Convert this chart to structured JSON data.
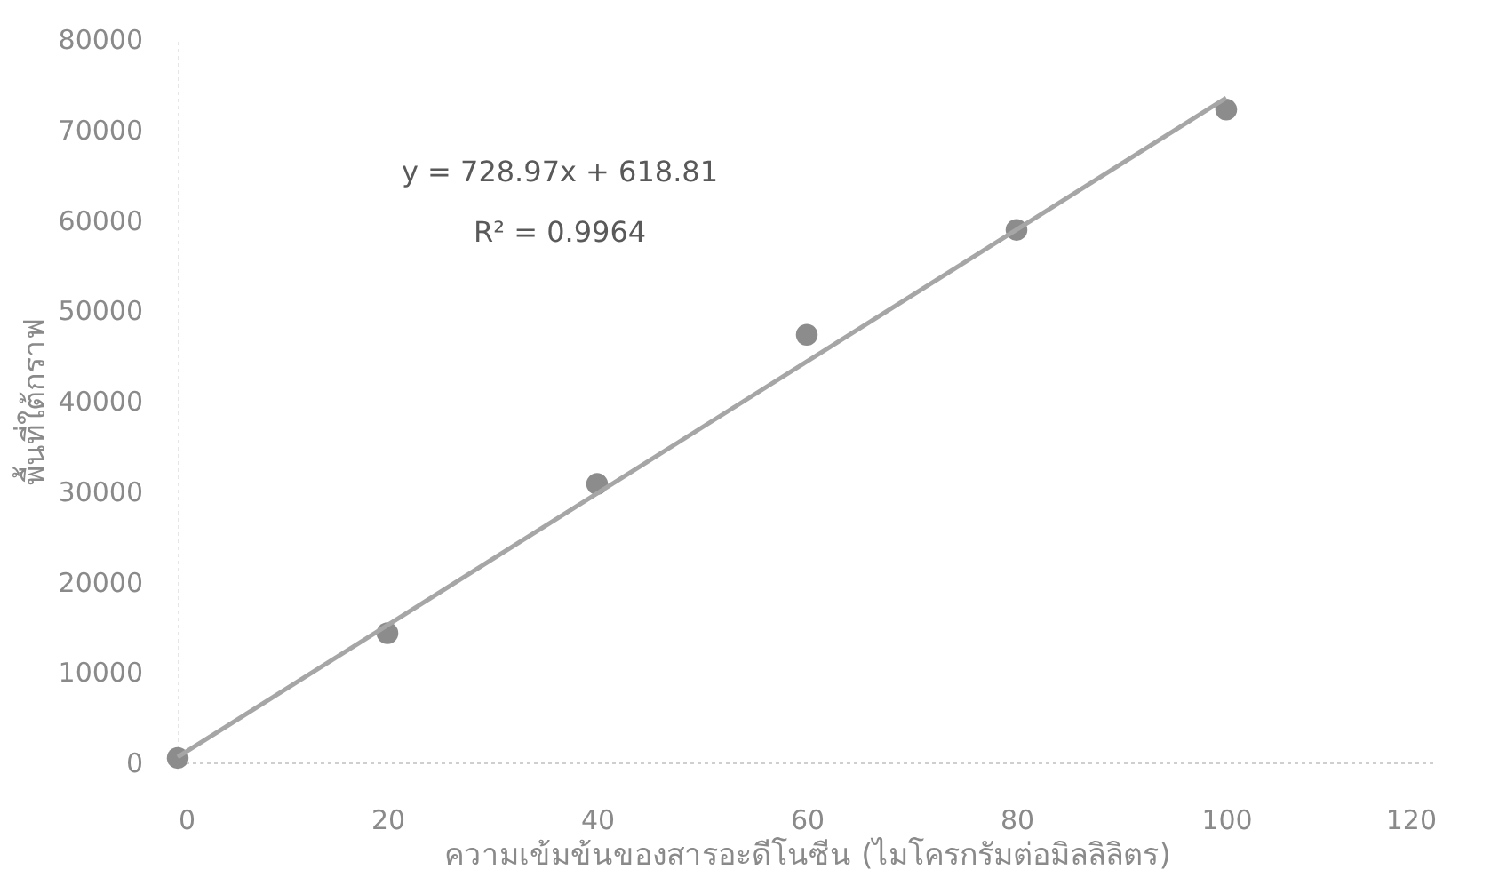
{
  "chart_data": {
    "type": "scatter",
    "xlabel": "ความเข้มข้นของสารอะดีโนซีน (ไมโครกรัมต่อมิลลิลิตร)",
    "ylabel": "พื้นที่ใต้กราฟ",
    "xlim": [
      0,
      120
    ],
    "xticks": [
      0,
      20,
      40,
      60,
      80,
      100,
      120
    ],
    "ylim": [
      0,
      80000
    ],
    "yticks": [
      0,
      10000,
      20000,
      30000,
      40000,
      50000,
      60000,
      70000,
      80000
    ],
    "grid": false,
    "marker": "circle",
    "series": [
      {
        "color": "#8c8c8c",
        "x": [
          0,
          20,
          40,
          60,
          80,
          100
        ],
        "values": [
          500,
          14300,
          30800,
          47300,
          58900,
          72200
        ]
      },
      {
        "type": "line",
        "color": "#a6a6a6",
        "marker": "none",
        "line_style": "solid",
        "x": [
          0,
          100
        ],
        "values": [
          600,
          73500
        ]
      }
    ],
    "annotations": [
      "y = 728.97x + 618.81",
      "R² = 0.9964"
    ]
  }
}
